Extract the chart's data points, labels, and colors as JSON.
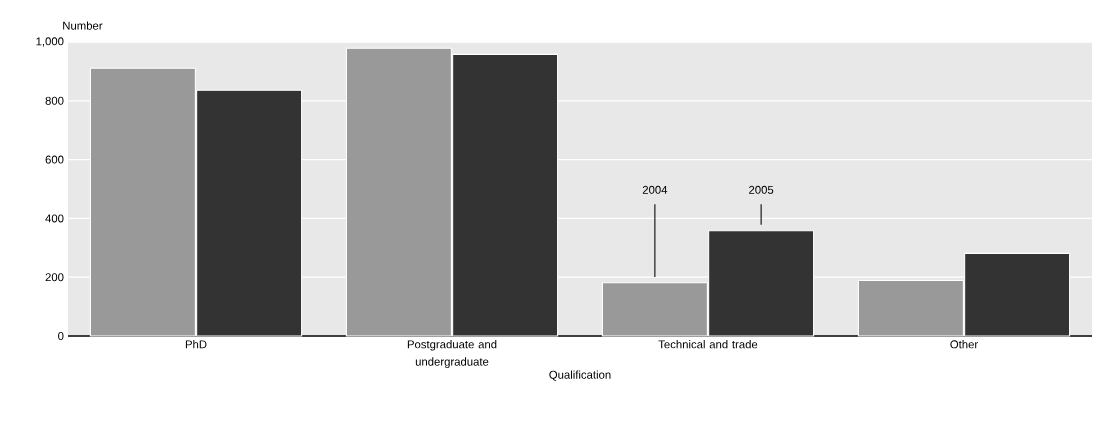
{
  "chart_data": {
    "type": "bar",
    "xlabel": "Qualification",
    "ylabel": "Number",
    "categories": [
      "PhD",
      "Postgraduate and undergraduate",
      "Technical and trade",
      "Other"
    ],
    "series": [
      {
        "name": "2004",
        "color": "#999999",
        "values": [
          911,
          979,
          181,
          189
        ]
      },
      {
        "name": "2005",
        "color": "#333333",
        "values": [
          836,
          958,
          358,
          281
        ]
      }
    ],
    "ylim": [
      0,
      1000
    ],
    "yticks": [
      0,
      200,
      400,
      600,
      800,
      {
        "value": 1000,
        "label": "1,000"
      }
    ],
    "grid": "y"
  }
}
